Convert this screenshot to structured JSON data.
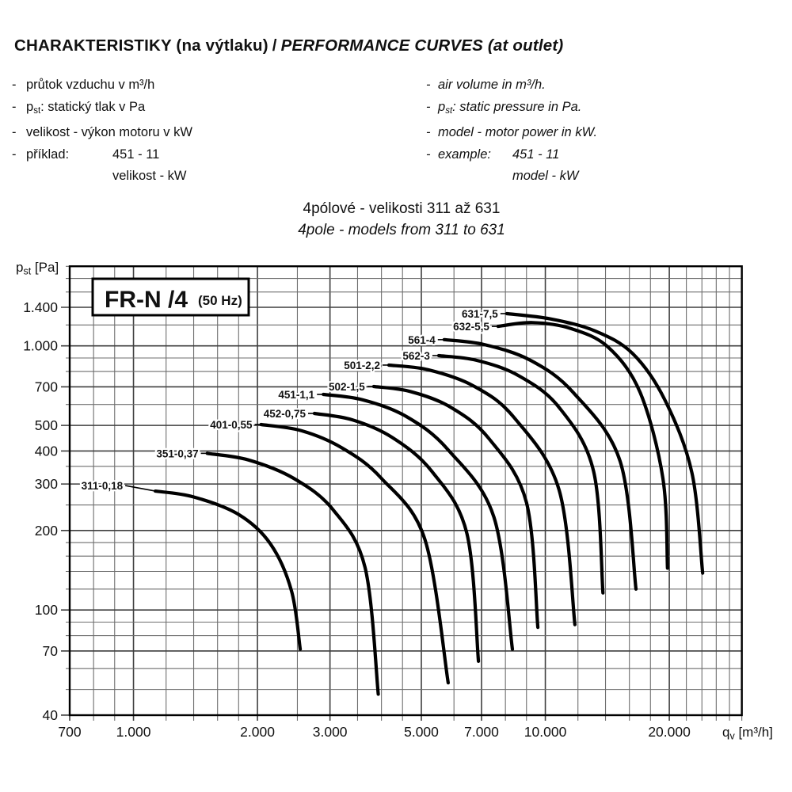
{
  "header": {
    "title_cz": "CHARAKTERISTIKY (na výtlaku)",
    "title_sep": "/",
    "title_en": "PERFORMANCE CURVES (at outlet)"
  },
  "bullet": "-",
  "intro": {
    "left": {
      "item1": "průtok vzduchu v m³/h",
      "item2_base": "p",
      "item2_sub": "st",
      "item2_rest": ": statický tlak v Pa",
      "item3": "velikost - výkon motoru v kW",
      "item4_label": "příklad:",
      "item4_value": "451 - 11",
      "item5": "velikost - kW"
    },
    "right": {
      "item1": "air volume in m³/h.",
      "item2_base": "p",
      "item2_sub": "st",
      "item2_rest": ": static pressure in Pa.",
      "item3": "model - motor power in kW.",
      "item4_label": "example:",
      "item4_value": "451 - 11",
      "item5": "model - kW"
    }
  },
  "subtitle": {
    "line1": "4pólové - velikosti 311 až 631",
    "line2": "4pole - models from 311 to 631"
  },
  "chart_data": {
    "type": "line",
    "title": "FR-N /4",
    "title_suffix": "(50 Hz)",
    "x_scale": "log",
    "y_scale": "log",
    "xlim": [
      700,
      30000
    ],
    "ylim": [
      40,
      2000
    ],
    "xlabel_base": "q",
    "xlabel_sub": "v",
    "xlabel_rest": " [m³/h]",
    "ylabel_base": "p",
    "ylabel_sub": "st",
    "ylabel_rest": " [Pa]",
    "grid": true,
    "x_ticks": [
      {
        "v": 700,
        "label": "700"
      },
      {
        "v": 1000,
        "label": "1.000"
      },
      {
        "v": 2000,
        "label": "2.000"
      },
      {
        "v": 3000,
        "label": "3.000"
      },
      {
        "v": 5000,
        "label": "5.000"
      },
      {
        "v": 7000,
        "label": "7.000"
      },
      {
        "v": 10000,
        "label": "10.000"
      },
      {
        "v": 20000,
        "label": "20.000"
      }
    ],
    "y_ticks": [
      {
        "v": 1400,
        "label": "1.400"
      },
      {
        "v": 1000,
        "label": "1.000"
      },
      {
        "v": 700,
        "label": "700"
      },
      {
        "v": 500,
        "label": "500"
      },
      {
        "v": 400,
        "label": "400"
      },
      {
        "v": 300,
        "label": "300"
      },
      {
        "v": 200,
        "label": "200"
      },
      {
        "v": 100,
        "label": "100"
      },
      {
        "v": 70,
        "label": "70"
      },
      {
        "v": 40,
        "label": "40"
      }
    ],
    "x_gridlines": [
      700,
      800,
      900,
      1000,
      1200,
      1400,
      1600,
      1800,
      2000,
      2500,
      3000,
      3500,
      4000,
      4500,
      5000,
      6000,
      7000,
      8000,
      9000,
      10000,
      12000,
      14000,
      16000,
      18000,
      20000,
      22000,
      24000,
      26000,
      28000,
      30000
    ],
    "y_gridlines": [
      40,
      50,
      60,
      70,
      80,
      90,
      100,
      120,
      140,
      160,
      180,
      200,
      250,
      300,
      350,
      400,
      500,
      600,
      700,
      800,
      900,
      1000,
      1200,
      1400,
      1600,
      1800,
      2000
    ],
    "series": [
      {
        "name": "311-0,18",
        "points": [
          [
            1130,
            282
          ],
          [
            1400,
            268
          ],
          [
            1800,
            230
          ],
          [
            2150,
            178
          ],
          [
            2420,
            118
          ],
          [
            2540,
            71
          ]
        ]
      },
      {
        "name": "351-0,37",
        "points": [
          [
            1510,
            392
          ],
          [
            1900,
            370
          ],
          [
            2450,
            315
          ],
          [
            3050,
            240
          ],
          [
            3650,
            145
          ],
          [
            3930,
            48
          ]
        ]
      },
      {
        "name": "401-0,55",
        "points": [
          [
            2040,
            504
          ],
          [
            2550,
            478
          ],
          [
            3200,
            412
          ],
          [
            4000,
            315
          ],
          [
            5100,
            185
          ],
          [
            5810,
            53
          ]
        ]
      },
      {
        "name": "452-0,75",
        "points": [
          [
            2750,
            555
          ],
          [
            3400,
            525
          ],
          [
            4250,
            450
          ],
          [
            5300,
            335
          ],
          [
            6450,
            195
          ],
          [
            6880,
            64
          ]
        ]
      },
      {
        "name": "451-1,1",
        "points": [
          [
            2890,
            655
          ],
          [
            3600,
            625
          ],
          [
            4600,
            540
          ],
          [
            5800,
            405
          ],
          [
            7500,
            225
          ],
          [
            8320,
            71
          ]
        ]
      },
      {
        "name": "502-1,5",
        "points": [
          [
            3830,
            702
          ],
          [
            4700,
            672
          ],
          [
            5900,
            585
          ],
          [
            7300,
            445
          ],
          [
            9000,
            255
          ],
          [
            9590,
            86
          ]
        ]
      },
      {
        "name": "501-2,2",
        "points": [
          [
            4170,
            846
          ],
          [
            5200,
            812
          ],
          [
            6700,
            705
          ],
          [
            8400,
            535
          ],
          [
            10800,
            285
          ],
          [
            11800,
            88
          ]
        ]
      },
      {
        "name": "562-3",
        "points": [
          [
            5510,
            919
          ],
          [
            6800,
            882
          ],
          [
            8600,
            772
          ],
          [
            10800,
            585
          ],
          [
            13100,
            335
          ],
          [
            13800,
            116
          ]
        ]
      },
      {
        "name": "561-4",
        "points": [
          [
            5680,
            1056
          ],
          [
            7100,
            1012
          ],
          [
            9200,
            882
          ],
          [
            11700,
            665
          ],
          [
            15200,
            365
          ],
          [
            16600,
            120
          ]
        ]
      },
      {
        "name": "632-5,5",
        "points": [
          [
            7680,
            1185
          ],
          [
            9300,
            1225
          ],
          [
            11500,
            1165
          ],
          [
            14200,
            990
          ],
          [
            17000,
            665
          ],
          [
            19300,
            315
          ],
          [
            19800,
            144
          ]
        ]
      },
      {
        "name": "631-7,5",
        "points": [
          [
            8060,
            1325
          ],
          [
            10300,
            1265
          ],
          [
            13200,
            1140
          ],
          [
            16300,
            935
          ],
          [
            19500,
            625
          ],
          [
            22700,
            330
          ],
          [
            24100,
            138
          ]
        ]
      }
    ]
  },
  "colors": {
    "curve": "#000000",
    "grid_minor": "#6e6e6e",
    "grid_major": "#3f3f3f",
    "frame": "#000000",
    "text": "#111111"
  }
}
